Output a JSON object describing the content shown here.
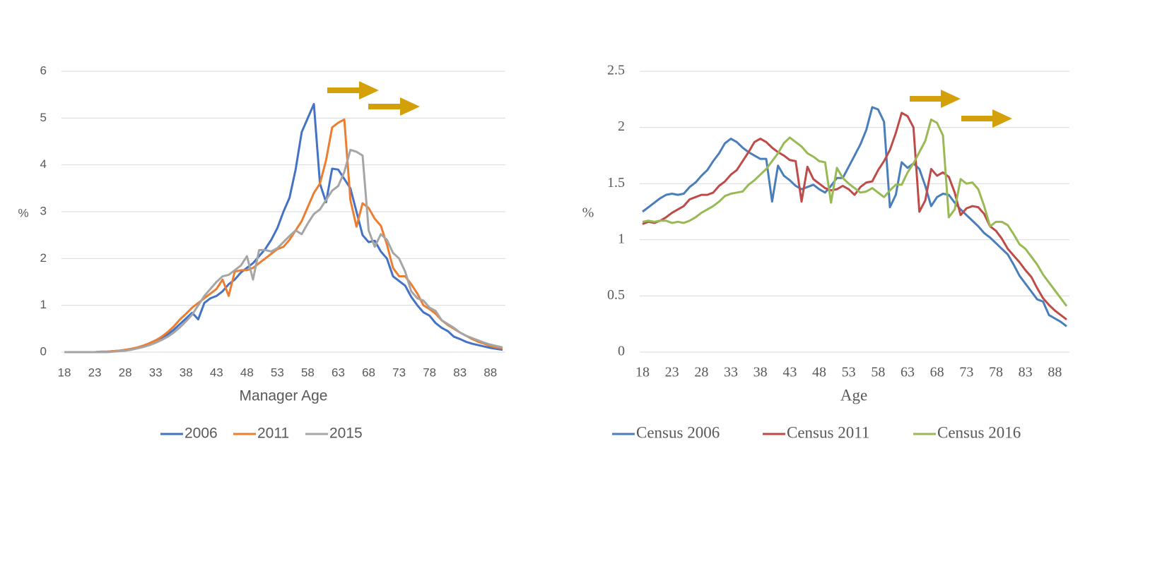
{
  "chart_data": [
    {
      "type": "line",
      "x_label": "Manager Age",
      "y_label": "%",
      "x": [
        18,
        19,
        20,
        21,
        22,
        23,
        24,
        25,
        26,
        27,
        28,
        29,
        30,
        31,
        32,
        33,
        34,
        35,
        36,
        37,
        38,
        39,
        40,
        41,
        42,
        43,
        44,
        45,
        46,
        47,
        48,
        49,
        50,
        51,
        52,
        53,
        54,
        55,
        56,
        57,
        58,
        59,
        60,
        61,
        62,
        63,
        64,
        65,
        66,
        67,
        68,
        69,
        70,
        71,
        72,
        73,
        74,
        75,
        76,
        77,
        78,
        79,
        80,
        81,
        82,
        83,
        84,
        85,
        86,
        87,
        88,
        89,
        90
      ],
      "xlim": [
        18,
        90
      ],
      "xticks": [
        18,
        23,
        28,
        33,
        38,
        43,
        48,
        53,
        58,
        63,
        68,
        73,
        78,
        83,
        88
      ],
      "ylim": [
        0,
        6
      ],
      "yticks": [
        0,
        1,
        2,
        3,
        4,
        5,
        6
      ],
      "grid": true,
      "legend": "bottom",
      "series": [
        {
          "name": "2006",
          "color": "#4472c4",
          "values": [
            0,
            0,
            0,
            0,
            0,
            0,
            0.01,
            0.01,
            0.02,
            0.03,
            0.04,
            0.06,
            0.09,
            0.13,
            0.19,
            0.25,
            0.31,
            0.38,
            0.48,
            0.6,
            0.72,
            0.84,
            0.7,
            1.05,
            1.15,
            1.2,
            1.3,
            1.45,
            1.55,
            1.7,
            1.8,
            1.9,
            2.05,
            2.2,
            2.4,
            2.65,
            3.0,
            3.3,
            3.9,
            4.7,
            5.0,
            5.3,
            3.6,
            3.2,
            3.92,
            3.9,
            3.7,
            3.5,
            3.0,
            2.5,
            2.35,
            2.38,
            2.15,
            2.0,
            1.62,
            1.52,
            1.42,
            1.18,
            1.0,
            0.85,
            0.78,
            0.62,
            0.52,
            0.45,
            0.33,
            0.28,
            0.22,
            0.18,
            0.15,
            0.12,
            0.09,
            0.07,
            0.05
          ]
        },
        {
          "name": "2011",
          "color": "#ed7d31",
          "values": [
            0,
            0,
            0,
            0,
            0,
            0,
            0.01,
            0.01,
            0.02,
            0.03,
            0.05,
            0.07,
            0.1,
            0.14,
            0.19,
            0.25,
            0.33,
            0.43,
            0.55,
            0.7,
            0.82,
            0.95,
            1.05,
            1.15,
            1.25,
            1.35,
            1.55,
            1.2,
            1.72,
            1.75,
            1.75,
            1.8,
            1.9,
            2.0,
            2.1,
            2.2,
            2.25,
            2.4,
            2.6,
            2.8,
            3.1,
            3.4,
            3.6,
            4.1,
            4.8,
            4.9,
            4.97,
            3.25,
            2.68,
            3.18,
            3.08,
            2.85,
            2.7,
            2.3,
            1.8,
            1.62,
            1.62,
            1.45,
            1.25,
            1.0,
            0.92,
            0.82,
            0.68,
            0.58,
            0.5,
            0.42,
            0.35,
            0.28,
            0.22,
            0.18,
            0.13,
            0.1,
            0.08
          ]
        },
        {
          "name": "2015",
          "color": "#a5a5a5",
          "values": [
            0,
            0,
            0,
            0,
            0,
            0,
            0,
            0,
            0.01,
            0.02,
            0.03,
            0.05,
            0.08,
            0.11,
            0.15,
            0.2,
            0.26,
            0.33,
            0.42,
            0.53,
            0.66,
            0.8,
            1.0,
            1.2,
            1.35,
            1.5,
            1.62,
            1.65,
            1.75,
            1.85,
            2.05,
            1.55,
            2.18,
            2.18,
            2.15,
            2.22,
            2.35,
            2.48,
            2.6,
            2.52,
            2.75,
            2.95,
            3.05,
            3.25,
            3.45,
            3.55,
            3.85,
            4.32,
            4.28,
            4.2,
            2.6,
            2.25,
            2.52,
            2.4,
            2.12,
            2.0,
            1.72,
            1.3,
            1.15,
            1.1,
            0.95,
            0.88,
            0.68,
            0.6,
            0.52,
            0.42,
            0.35,
            0.3,
            0.25,
            0.2,
            0.16,
            0.13,
            0.1
          ]
        }
      ]
    },
    {
      "type": "line",
      "x_label": "Age",
      "y_label": "%",
      "x": [
        18,
        19,
        20,
        21,
        22,
        23,
        24,
        25,
        26,
        27,
        28,
        29,
        30,
        31,
        32,
        33,
        34,
        35,
        36,
        37,
        38,
        39,
        40,
        41,
        42,
        43,
        44,
        45,
        46,
        47,
        48,
        49,
        50,
        51,
        52,
        53,
        54,
        55,
        56,
        57,
        58,
        59,
        60,
        61,
        62,
        63,
        64,
        65,
        66,
        67,
        68,
        69,
        70,
        71,
        72,
        73,
        74,
        75,
        76,
        77,
        78,
        79,
        80,
        81,
        82,
        83,
        84,
        85,
        86,
        87,
        88,
        89,
        90
      ],
      "xlim": [
        18,
        90
      ],
      "xticks": [
        18,
        23,
        28,
        33,
        38,
        43,
        48,
        53,
        58,
        63,
        68,
        73,
        78,
        83,
        88
      ],
      "ylim": [
        0,
        2.5
      ],
      "yticks": [
        0,
        0.5,
        1,
        1.5,
        2,
        2.5
      ],
      "grid": true,
      "legend": "bottom",
      "series": [
        {
          "name": "Census 2006",
          "color": "#4a7ebb",
          "values": [
            1.25,
            1.29,
            1.33,
            1.37,
            1.4,
            1.41,
            1.4,
            1.41,
            1.47,
            1.51,
            1.57,
            1.62,
            1.7,
            1.77,
            1.86,
            1.9,
            1.87,
            1.82,
            1.78,
            1.75,
            1.72,
            1.72,
            1.34,
            1.66,
            1.57,
            1.53,
            1.48,
            1.45,
            1.47,
            1.49,
            1.45,
            1.42,
            1.48,
            1.55,
            1.55,
            1.65,
            1.75,
            1.85,
            1.98,
            2.18,
            2.16,
            2.05,
            1.29,
            1.4,
            1.69,
            1.64,
            1.68,
            1.63,
            1.48,
            1.3,
            1.38,
            1.41,
            1.4,
            1.33,
            1.27,
            1.22,
            1.17,
            1.12,
            1.06,
            1.02,
            0.97,
            0.92,
            0.87,
            0.78,
            0.68,
            0.61,
            0.54,
            0.47,
            0.45,
            0.33,
            0.3,
            0.27,
            0.23
          ]
        },
        {
          "name": "Census 2011",
          "color": "#be4b48",
          "values": [
            1.14,
            1.16,
            1.15,
            1.17,
            1.2,
            1.24,
            1.27,
            1.3,
            1.36,
            1.38,
            1.4,
            1.4,
            1.42,
            1.48,
            1.52,
            1.58,
            1.62,
            1.7,
            1.78,
            1.87,
            1.9,
            1.87,
            1.82,
            1.78,
            1.75,
            1.71,
            1.7,
            1.34,
            1.65,
            1.54,
            1.5,
            1.46,
            1.44,
            1.45,
            1.48,
            1.45,
            1.4,
            1.47,
            1.51,
            1.52,
            1.62,
            1.7,
            1.8,
            1.95,
            2.13,
            2.1,
            2.0,
            1.25,
            1.35,
            1.63,
            1.57,
            1.6,
            1.56,
            1.42,
            1.22,
            1.28,
            1.3,
            1.29,
            1.23,
            1.12,
            1.08,
            1.01,
            0.92,
            0.86,
            0.8,
            0.73,
            0.67,
            0.57,
            0.48,
            0.42,
            0.37,
            0.33,
            0.29
          ]
        },
        {
          "name": "Census 2016",
          "color": "#98b954",
          "values": [
            1.16,
            1.17,
            1.16,
            1.17,
            1.17,
            1.15,
            1.16,
            1.15,
            1.17,
            1.2,
            1.24,
            1.27,
            1.3,
            1.34,
            1.39,
            1.41,
            1.42,
            1.43,
            1.49,
            1.53,
            1.58,
            1.63,
            1.7,
            1.77,
            1.86,
            1.91,
            1.87,
            1.83,
            1.77,
            1.74,
            1.7,
            1.69,
            1.33,
            1.64,
            1.55,
            1.5,
            1.46,
            1.42,
            1.43,
            1.46,
            1.42,
            1.38,
            1.44,
            1.49,
            1.49,
            1.6,
            1.68,
            1.78,
            1.88,
            2.07,
            2.04,
            1.93,
            1.2,
            1.27,
            1.54,
            1.5,
            1.51,
            1.45,
            1.3,
            1.12,
            1.16,
            1.16,
            1.13,
            1.05,
            0.96,
            0.92,
            0.85,
            0.78,
            0.69,
            0.62,
            0.55,
            0.48,
            0.41
          ]
        }
      ]
    }
  ]
}
